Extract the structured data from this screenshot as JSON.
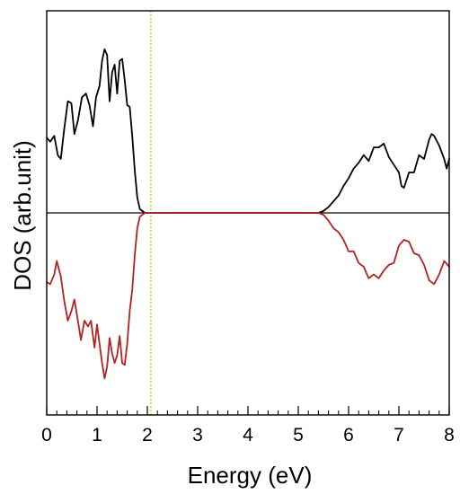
{
  "chart_data": {
    "type": "line",
    "xlabel": "Energy (eV)",
    "ylabel": "DOS (arb.unit)",
    "xlim": [
      0,
      8
    ],
    "ylim": [
      -1.05,
      1.05
    ],
    "x_ticks": [
      "0",
      "1",
      "2",
      "3",
      "4",
      "5",
      "6",
      "7",
      "8"
    ],
    "y_ticks_labeled": false,
    "grid": false,
    "legend": "none",
    "reference_lines": {
      "zero_line": {
        "y": 0,
        "color": "#000000"
      },
      "fermi_level": {
        "x": 2.07,
        "color": "#d4c200",
        "style": "dashed"
      }
    },
    "series": [
      {
        "color": "#000000",
        "points": [
          [
            0.0,
            0.39
          ],
          [
            0.07,
            0.37
          ],
          [
            0.15,
            0.4
          ],
          [
            0.22,
            0.3
          ],
          [
            0.28,
            0.28
          ],
          [
            0.35,
            0.44
          ],
          [
            0.42,
            0.58
          ],
          [
            0.49,
            0.57
          ],
          [
            0.55,
            0.41
          ],
          [
            0.62,
            0.48
          ],
          [
            0.7,
            0.6
          ],
          [
            0.78,
            0.62
          ],
          [
            0.85,
            0.56
          ],
          [
            0.92,
            0.45
          ],
          [
            0.98,
            0.6
          ],
          [
            1.05,
            0.66
          ],
          [
            1.1,
            0.79
          ],
          [
            1.15,
            0.85
          ],
          [
            1.2,
            0.82
          ],
          [
            1.25,
            0.58
          ],
          [
            1.3,
            0.73
          ],
          [
            1.35,
            0.77
          ],
          [
            1.4,
            0.62
          ],
          [
            1.45,
            0.79
          ],
          [
            1.5,
            0.8
          ],
          [
            1.55,
            0.69
          ],
          [
            1.6,
            0.56
          ],
          [
            1.65,
            0.55
          ],
          [
            1.7,
            0.4
          ],
          [
            1.75,
            0.22
          ],
          [
            1.8,
            0.08
          ],
          [
            1.85,
            0.02
          ],
          [
            1.95,
            0.0
          ],
          [
            2.5,
            0.0
          ],
          [
            3.0,
            0.0
          ],
          [
            3.5,
            0.0
          ],
          [
            4.0,
            0.0
          ],
          [
            4.5,
            0.0
          ],
          [
            5.0,
            0.0
          ],
          [
            5.4,
            0.0
          ],
          [
            5.5,
            0.01
          ],
          [
            5.6,
            0.03
          ],
          [
            5.7,
            0.06
          ],
          [
            5.8,
            0.09
          ],
          [
            5.9,
            0.14
          ],
          [
            6.0,
            0.18
          ],
          [
            6.1,
            0.23
          ],
          [
            6.2,
            0.26
          ],
          [
            6.3,
            0.3
          ],
          [
            6.4,
            0.27
          ],
          [
            6.5,
            0.34
          ],
          [
            6.6,
            0.34
          ],
          [
            6.7,
            0.36
          ],
          [
            6.8,
            0.29
          ],
          [
            6.9,
            0.25
          ],
          [
            7.0,
            0.21
          ],
          [
            7.05,
            0.14
          ],
          [
            7.1,
            0.13
          ],
          [
            7.2,
            0.21
          ],
          [
            7.3,
            0.21
          ],
          [
            7.4,
            0.3
          ],
          [
            7.5,
            0.28
          ],
          [
            7.6,
            0.38
          ],
          [
            7.65,
            0.41
          ],
          [
            7.7,
            0.4
          ],
          [
            7.8,
            0.35
          ],
          [
            7.9,
            0.28
          ],
          [
            7.95,
            0.23
          ],
          [
            8.0,
            0.28
          ]
        ]
      },
      {
        "color": "#b22222",
        "points": [
          [
            0.0,
            -0.36
          ],
          [
            0.07,
            -0.37
          ],
          [
            0.15,
            -0.32
          ],
          [
            0.2,
            -0.25
          ],
          [
            0.28,
            -0.33
          ],
          [
            0.35,
            -0.46
          ],
          [
            0.42,
            -0.56
          ],
          [
            0.49,
            -0.51
          ],
          [
            0.55,
            -0.45
          ],
          [
            0.62,
            -0.56
          ],
          [
            0.68,
            -0.66
          ],
          [
            0.75,
            -0.56
          ],
          [
            0.82,
            -0.59
          ],
          [
            0.88,
            -0.56
          ],
          [
            0.95,
            -0.7
          ],
          [
            1.0,
            -0.58
          ],
          [
            1.05,
            -0.68
          ],
          [
            1.1,
            -0.78
          ],
          [
            1.15,
            -0.86
          ],
          [
            1.2,
            -0.8
          ],
          [
            1.25,
            -0.65
          ],
          [
            1.3,
            -0.73
          ],
          [
            1.35,
            -0.78
          ],
          [
            1.4,
            -0.74
          ],
          [
            1.45,
            -0.64
          ],
          [
            1.5,
            -0.78
          ],
          [
            1.55,
            -0.79
          ],
          [
            1.6,
            -0.68
          ],
          [
            1.65,
            -0.51
          ],
          [
            1.7,
            -0.4
          ],
          [
            1.75,
            -0.22
          ],
          [
            1.8,
            -0.08
          ],
          [
            1.85,
            -0.02
          ],
          [
            1.95,
            0.0
          ],
          [
            2.5,
            0.0
          ],
          [
            3.0,
            0.0
          ],
          [
            3.5,
            0.0
          ],
          [
            4.0,
            0.0
          ],
          [
            4.5,
            0.0
          ],
          [
            5.0,
            0.0
          ],
          [
            5.4,
            0.0
          ],
          [
            5.5,
            -0.01
          ],
          [
            5.6,
            -0.04
          ],
          [
            5.7,
            -0.08
          ],
          [
            5.8,
            -0.1
          ],
          [
            5.9,
            -0.14
          ],
          [
            6.0,
            -0.2
          ],
          [
            6.1,
            -0.2
          ],
          [
            6.2,
            -0.26
          ],
          [
            6.3,
            -0.28
          ],
          [
            6.4,
            -0.34
          ],
          [
            6.5,
            -0.32
          ],
          [
            6.6,
            -0.34
          ],
          [
            6.7,
            -0.3
          ],
          [
            6.8,
            -0.27
          ],
          [
            6.9,
            -0.26
          ],
          [
            7.0,
            -0.17
          ],
          [
            7.1,
            -0.14
          ],
          [
            7.2,
            -0.15
          ],
          [
            7.3,
            -0.21
          ],
          [
            7.4,
            -0.22
          ],
          [
            7.5,
            -0.27
          ],
          [
            7.6,
            -0.35
          ],
          [
            7.7,
            -0.37
          ],
          [
            7.8,
            -0.32
          ],
          [
            7.9,
            -0.25
          ],
          [
            8.0,
            -0.28
          ]
        ]
      }
    ]
  }
}
